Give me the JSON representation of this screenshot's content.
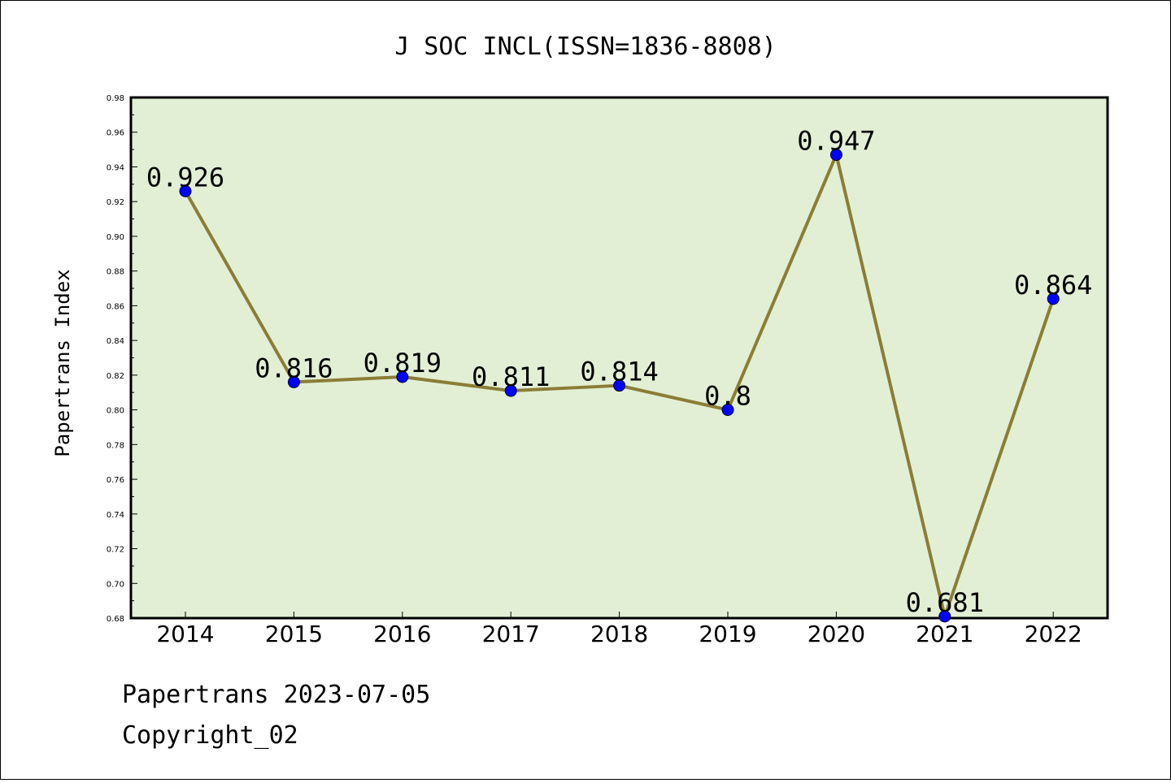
{
  "chart_data": {
    "type": "line",
    "title": "J SOC INCL(ISSN=1836-8808)",
    "ylabel": "Papertrans Index",
    "xlabel": "",
    "categories": [
      "2014",
      "2015",
      "2016",
      "2017",
      "2018",
      "2019",
      "2020",
      "2021",
      "2022"
    ],
    "values": [
      0.926,
      0.816,
      0.819,
      0.811,
      0.814,
      0.8,
      0.947,
      0.681,
      0.864
    ],
    "data_labels": [
      "0.926",
      "0.816",
      "0.819",
      "0.811",
      "0.814",
      "0.8",
      "0.947",
      "0.681",
      "0.864"
    ],
    "ylim": [
      0.68,
      0.98
    ],
    "yticks": [
      "0.68",
      "0.70",
      "0.72",
      "0.74",
      "0.76",
      "0.78",
      "0.80",
      "0.82",
      "0.84",
      "0.86",
      "0.88",
      "0.90",
      "0.92",
      "0.94",
      "0.96",
      "0.98"
    ],
    "grid": false,
    "colors": {
      "plot_background": "#e2efd5",
      "line": "#8b7d35",
      "marker": "#0000ff"
    }
  },
  "footer": {
    "line1": "Papertrans 2023-07-05",
    "line2": "Copyright_02"
  }
}
